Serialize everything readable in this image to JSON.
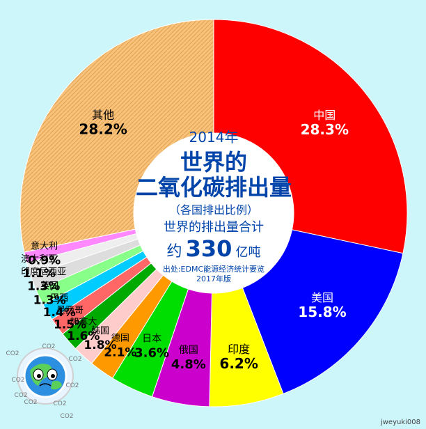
{
  "chart_data": {
    "type": "pie",
    "donut": true,
    "start_angle_deg": 0,
    "center_text": {
      "year": "2014年",
      "title_line1": "世界的",
      "title_line2": "二氧化碳排出量",
      "subtitle": "（各国排出比例）",
      "total_label": "世界的排出量合计",
      "total_prefix": "约",
      "total_value": "330",
      "total_suffix": "亿吨",
      "source_line1": "出处:EDMC能源经济统计要览",
      "source_line2": "2017年版"
    },
    "slices": [
      {
        "label": "中国",
        "value": 28.3,
        "value_text": "28.3%",
        "color": "#ff0000"
      },
      {
        "label": "美国",
        "value": 15.8,
        "value_text": "15.8%",
        "color": "#0000ff"
      },
      {
        "label": "印度",
        "value": 6.2,
        "value_text": "6.2%",
        "color": "#ffff00"
      },
      {
        "label": "俄国",
        "value": 4.8,
        "value_text": "4.8%",
        "color": "#cc00cc"
      },
      {
        "label": "日本",
        "value": 3.6,
        "value_text": "3.6%",
        "color": "#00dd00"
      },
      {
        "label": "德国",
        "value": 2.1,
        "value_text": "2.1%",
        "color": "#ff9900"
      },
      {
        "label": "韩国",
        "value": 1.8,
        "value_text": "1.8%",
        "color": "#ffcccc"
      },
      {
        "label": "加拿大",
        "value": 1.6,
        "value_text": "1.6%",
        "color": "#00aa00"
      },
      {
        "label": "墨西哥",
        "value": 1.5,
        "value_text": "1.5%",
        "color": "#ff6666"
      },
      {
        "label": "巴西",
        "value": 1.4,
        "value_text": "1.4%",
        "color": "#00ccff"
      },
      {
        "label": "英国",
        "value": 1.3,
        "value_text": "1.3%",
        "color": "#88ff88"
      },
      {
        "label": "印度尼西亚",
        "value": 1.3,
        "value_text": "1.3%",
        "color": "#dddddd"
      },
      {
        "label": "澳大利亚",
        "value": 1.1,
        "value_text": "1.1%",
        "color": "#eeeeee"
      },
      {
        "label": "意大利",
        "value": 0.9,
        "value_text": "0.9%",
        "color": "#ff88ff"
      },
      {
        "label": "其他",
        "value": 28.2,
        "value_text": "28.2%",
        "color": "#f8c27a"
      }
    ]
  },
  "credit": "jweyuki008",
  "mascot_icon": "earth-co2-icon",
  "mascot_text": "CO2"
}
